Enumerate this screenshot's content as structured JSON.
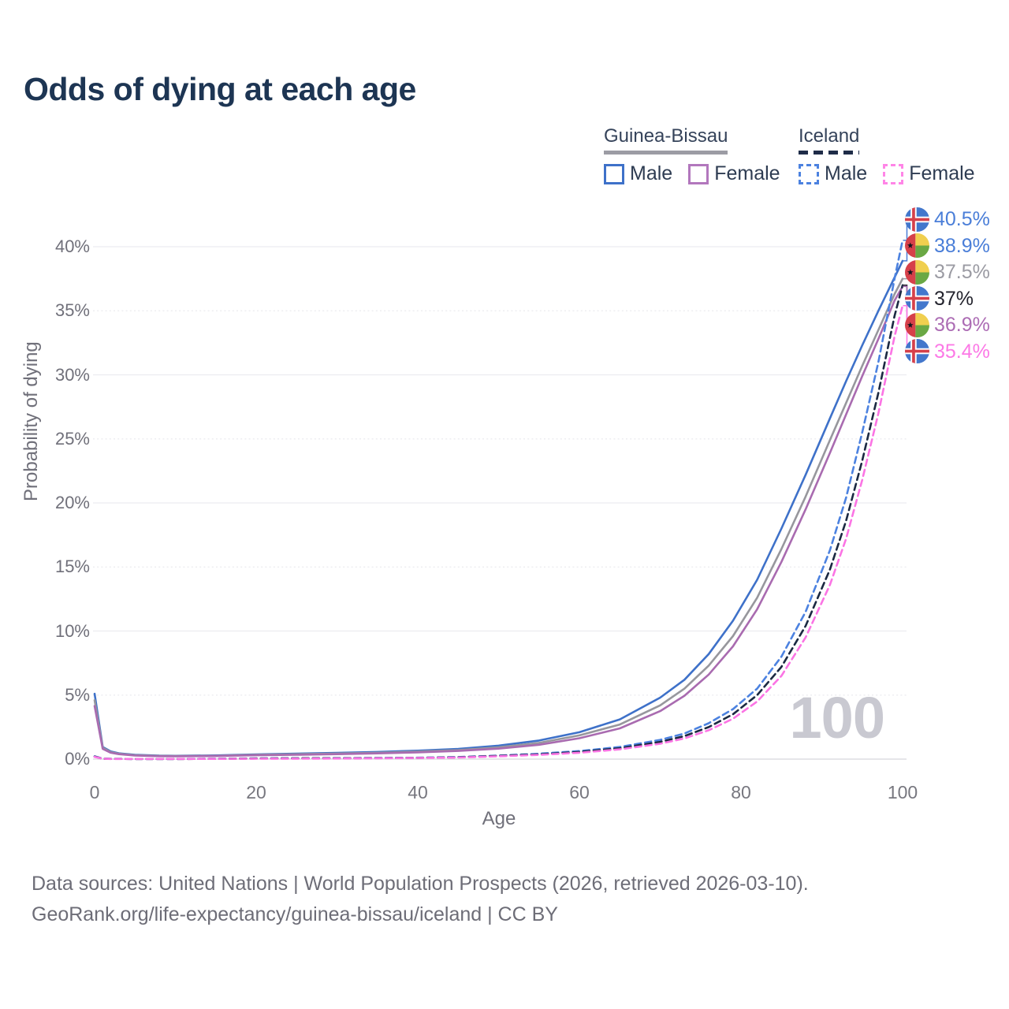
{
  "title": "Odds of dying at each age",
  "legend": {
    "groups": [
      {
        "label": "Guinea-Bissau",
        "underline_style": "solid",
        "underline_color": "#9c9ca4",
        "items": [
          {
            "label": "Male",
            "color": "#3e71c9",
            "dash": false
          },
          {
            "label": "Female",
            "color": "#b277bd",
            "dash": false
          }
        ]
      },
      {
        "label": "Iceland",
        "underline_style": "dashed",
        "underline_color": "#1f2c48",
        "items": [
          {
            "label": "Male",
            "color": "#4c82e0",
            "dash": true
          },
          {
            "label": "Female",
            "color": "#ff85e7",
            "dash": true
          }
        ]
      }
    ]
  },
  "chart_data": {
    "type": "line",
    "title": "Odds of dying at each age",
    "xlabel": "Age",
    "ylabel": "Probability of dying",
    "watermark": "100",
    "xlim": [
      0,
      100
    ],
    "ylim": [
      0,
      43
    ],
    "x_ticks": [
      0,
      20,
      40,
      60,
      80,
      100
    ],
    "y_ticks": [
      0,
      5,
      10,
      15,
      20,
      25,
      30,
      35,
      40
    ],
    "y_tick_suffix": "%",
    "grid": "horizontal",
    "legend_position": "top-right",
    "x": [
      0,
      1,
      2,
      3,
      5,
      8,
      10,
      15,
      20,
      25,
      30,
      35,
      40,
      45,
      50,
      55,
      60,
      65,
      70,
      73,
      76,
      79,
      82,
      85,
      88,
      91,
      93,
      95,
      97,
      99,
      100
    ],
    "series": [
      {
        "name": "Guinea-Bissau Male",
        "country": "Guinea-Bissau",
        "sex": "Male",
        "color": "#3e71c9",
        "dash": false,
        "end_value_label": "38.9%",
        "values": [
          5.1,
          0.95,
          0.6,
          0.45,
          0.33,
          0.27,
          0.26,
          0.29,
          0.37,
          0.43,
          0.49,
          0.56,
          0.66,
          0.8,
          1.05,
          1.45,
          2.1,
          3.1,
          4.8,
          6.2,
          8.2,
          10.8,
          14.0,
          18.0,
          22.2,
          26.6,
          29.5,
          32.3,
          35.0,
          37.6,
          38.9
        ]
      },
      {
        "name": "Guinea-Bissau Both sexes",
        "country": "Guinea-Bissau",
        "sex": "Both",
        "color": "#97979d",
        "dash": false,
        "end_value_label": "37.5%",
        "values": [
          4.6,
          0.88,
          0.55,
          0.42,
          0.3,
          0.25,
          0.24,
          0.26,
          0.33,
          0.38,
          0.44,
          0.5,
          0.59,
          0.71,
          0.92,
          1.27,
          1.85,
          2.7,
          4.2,
          5.5,
          7.3,
          9.6,
          12.6,
          16.4,
          20.5,
          24.9,
          27.8,
          30.7,
          33.5,
          36.3,
          37.5
        ]
      },
      {
        "name": "Guinea-Bissau Female",
        "country": "Guinea-Bissau",
        "sex": "Female",
        "color": "#a96bb0",
        "dash": false,
        "end_value_label": "36.9%",
        "values": [
          4.15,
          0.8,
          0.5,
          0.39,
          0.28,
          0.23,
          0.22,
          0.24,
          0.3,
          0.34,
          0.39,
          0.45,
          0.53,
          0.64,
          0.82,
          1.12,
          1.63,
          2.4,
          3.75,
          4.95,
          6.6,
          8.8,
          11.7,
          15.4,
          19.5,
          23.9,
          26.9,
          29.9,
          32.8,
          35.8,
          36.9
        ]
      },
      {
        "name": "Iceland Male",
        "country": "Iceland",
        "sex": "Male",
        "color": "#4c82e0",
        "dash": true,
        "end_value_label": "40.5%",
        "values": [
          0.22,
          0.04,
          0.02,
          0.02,
          0.01,
          0.01,
          0.01,
          0.03,
          0.06,
          0.07,
          0.08,
          0.09,
          0.11,
          0.16,
          0.28,
          0.42,
          0.63,
          0.95,
          1.5,
          2.0,
          2.8,
          3.9,
          5.5,
          8.0,
          11.5,
          16.3,
          20.4,
          25.5,
          31.0,
          37.5,
          40.5
        ]
      },
      {
        "name": "Iceland Both sexes",
        "country": "Iceland",
        "sex": "Both",
        "color": "#1b2942",
        "dash": true,
        "end_value_label": "37%",
        "values": [
          0.2,
          0.03,
          0.02,
          0.02,
          0.01,
          0.01,
          0.01,
          0.02,
          0.05,
          0.06,
          0.07,
          0.08,
          0.1,
          0.14,
          0.25,
          0.37,
          0.56,
          0.85,
          1.35,
          1.8,
          2.5,
          3.5,
          5.0,
          7.2,
          10.4,
          14.8,
          18.6,
          23.3,
          28.6,
          34.6,
          37.0
        ]
      },
      {
        "name": "Iceland Female",
        "country": "Iceland",
        "sex": "Female",
        "color": "#fb74e4",
        "dash": true,
        "end_value_label": "35.4%",
        "values": [
          0.18,
          0.03,
          0.01,
          0.01,
          0.01,
          0.01,
          0.01,
          0.02,
          0.03,
          0.04,
          0.05,
          0.07,
          0.09,
          0.12,
          0.22,
          0.33,
          0.5,
          0.76,
          1.2,
          1.62,
          2.25,
          3.15,
          4.5,
          6.5,
          9.5,
          13.6,
          17.2,
          21.8,
          27.0,
          33.0,
          35.4
        ]
      }
    ]
  },
  "end_labels": [
    {
      "flag": "iceland",
      "text": "40.5%",
      "value": 40.5,
      "color": "#4a7ed8"
    },
    {
      "flag": "guinea-bissau",
      "text": "38.9%",
      "value": 38.9,
      "color": "#4a7ed8"
    },
    {
      "flag": "guinea-bissau",
      "text": "37.5%",
      "value": 37.5,
      "color": "#9b9ba3"
    },
    {
      "flag": "iceland",
      "text": "37%",
      "value": 37.0,
      "color": "#23232d"
    },
    {
      "flag": "guinea-bissau",
      "text": "36.9%",
      "value": 36.9,
      "color": "#ac6cb4"
    },
    {
      "flag": "iceland",
      "text": "35.4%",
      "value": 35.4,
      "color": "#fc79e6"
    }
  ],
  "flags": {
    "iceland": {
      "blue": "#4377cc",
      "white": "#ffffff",
      "red": "#d6404a"
    },
    "guinea-bissau": {
      "red": "#d6404a",
      "yellow": "#f0cf4f",
      "green": "#6aa844",
      "star": "#15151f"
    }
  },
  "footer": {
    "line1": "Data sources: United Nations | World Population Prospects (2026, retrieved 2026-03-10).",
    "line2": "GeoRank.org/life-expectancy/guinea-bissau/iceland | CC BY"
  }
}
